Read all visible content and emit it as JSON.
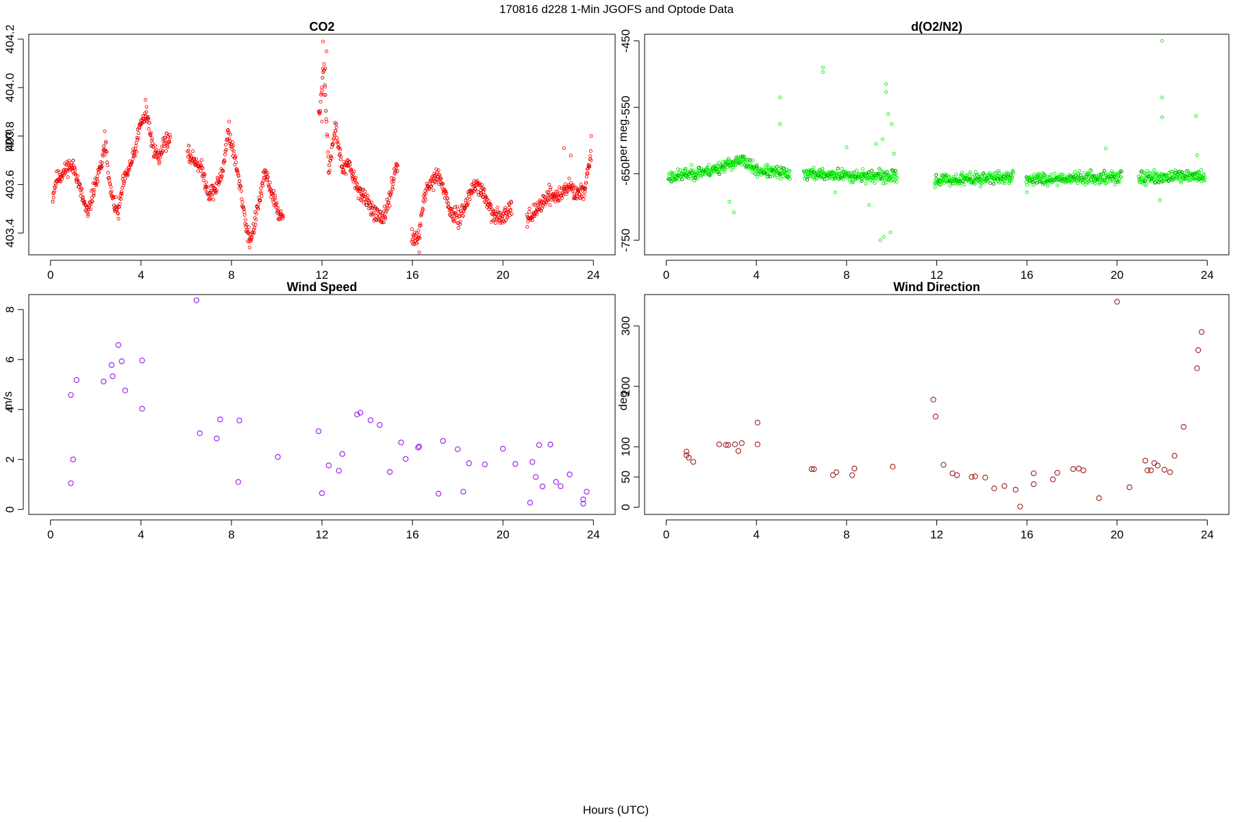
{
  "page": {
    "title": "170816   d228   1-Min  JGOFS and Optode Data",
    "xlabel": "Hours (UTC)"
  },
  "chart_data": [
    {
      "id": "co2",
      "type": "scatter",
      "title": "CO2",
      "xlabel": "",
      "ylabel": "ppm",
      "xlim": [
        -0.96,
        24.96
      ],
      "ylim": [
        403.31,
        404.22
      ],
      "xticks": [
        0,
        4,
        8,
        12,
        16,
        20,
        24
      ],
      "yticks": [
        403.4,
        403.6,
        403.8,
        404.0,
        404.2
      ],
      "ytick_labels": [
        "403.4",
        "403.6",
        "403.8",
        "404.0",
        "404.2"
      ],
      "color": "#ff0000",
      "accent_color": "#8b0000",
      "series_kind": "dense",
      "gaps": [
        [
          5.3,
          6.05
        ],
        [
          10.3,
          11.85
        ],
        [
          15.35,
          15.95
        ],
        [
          20.4,
          21.05
        ]
      ],
      "anchors": [
        [
          0.1,
          403.55
        ],
        [
          0.25,
          403.62
        ],
        [
          0.6,
          403.65
        ],
        [
          0.8,
          403.68
        ],
        [
          1.1,
          403.66
        ],
        [
          1.3,
          403.58
        ],
        [
          1.5,
          403.52
        ],
        [
          1.65,
          403.47
        ],
        [
          1.9,
          403.58
        ],
        [
          2.1,
          403.63
        ],
        [
          2.3,
          403.7
        ],
        [
          2.45,
          403.78
        ],
        [
          2.6,
          403.6
        ],
        [
          2.8,
          403.52
        ],
        [
          3.0,
          403.48
        ],
        [
          3.2,
          403.6
        ],
        [
          3.45,
          403.66
        ],
        [
          3.7,
          403.72
        ],
        [
          4.0,
          403.86
        ],
        [
          4.3,
          403.88
        ],
        [
          4.5,
          403.76
        ],
        [
          4.8,
          403.7
        ],
        [
          5.0,
          403.78
        ],
        [
          5.25,
          403.78
        ],
        [
          6.1,
          403.72
        ],
        [
          6.4,
          403.7
        ],
        [
          6.7,
          403.66
        ],
        [
          7.0,
          403.56
        ],
        [
          7.3,
          403.58
        ],
        [
          7.6,
          403.65
        ],
        [
          7.85,
          403.82
        ],
        [
          8.1,
          403.73
        ],
        [
          8.4,
          403.58
        ],
        [
          8.7,
          403.4
        ],
        [
          8.9,
          403.38
        ],
        [
          9.2,
          403.52
        ],
        [
          9.5,
          403.65
        ],
        [
          9.8,
          403.56
        ],
        [
          10.1,
          403.48
        ],
        [
          10.3,
          403.45
        ],
        [
          11.9,
          403.9
        ],
        [
          12.1,
          404.1
        ],
        [
          12.3,
          403.65
        ],
        [
          12.6,
          403.84
        ],
        [
          12.9,
          403.66
        ],
        [
          13.2,
          403.68
        ],
        [
          13.5,
          403.6
        ],
        [
          13.8,
          403.55
        ],
        [
          14.1,
          403.52
        ],
        [
          14.4,
          403.47
        ],
        [
          14.7,
          403.45
        ],
        [
          15.0,
          403.55
        ],
        [
          15.3,
          403.69
        ],
        [
          16.0,
          403.37
        ],
        [
          16.3,
          403.38
        ],
        [
          16.5,
          403.55
        ],
        [
          16.8,
          403.6
        ],
        [
          17.1,
          403.64
        ],
        [
          17.4,
          403.58
        ],
        [
          17.7,
          403.48
        ],
        [
          18.0,
          403.46
        ],
        [
          18.3,
          403.5
        ],
        [
          18.6,
          403.58
        ],
        [
          18.9,
          403.6
        ],
        [
          19.2,
          403.55
        ],
        [
          19.5,
          403.48
        ],
        [
          19.8,
          403.46
        ],
        [
          20.1,
          403.48
        ],
        [
          20.4,
          403.52
        ],
        [
          21.1,
          403.46
        ],
        [
          21.4,
          403.48
        ],
        [
          21.7,
          403.52
        ],
        [
          22.0,
          403.56
        ],
        [
          22.3,
          403.55
        ],
        [
          22.6,
          403.56
        ],
        [
          22.9,
          403.6
        ],
        [
          23.2,
          403.56
        ],
        [
          23.6,
          403.58
        ],
        [
          23.9,
          403.72
        ]
      ],
      "extra_points": [
        [
          12.05,
          404.19
        ],
        [
          12.2,
          404.15
        ],
        [
          12.15,
          404.08
        ],
        [
          12.1,
          403.97
        ],
        [
          12.0,
          403.86
        ],
        [
          23.9,
          403.8
        ],
        [
          23.0,
          403.72
        ],
        [
          4.2,
          403.95
        ],
        [
          4.25,
          403.92
        ],
        [
          2.4,
          403.82
        ],
        [
          7.9,
          403.86
        ],
        [
          16.3,
          403.32
        ],
        [
          0.4,
          403.65
        ],
        [
          22.7,
          403.75
        ],
        [
          8.8,
          403.34
        ]
      ],
      "noise": 0.025,
      "step": 0.0167,
      "seed": 11
    },
    {
      "id": "o2n2",
      "type": "scatter",
      "title": "d(O2/N2)",
      "xlabel": "",
      "ylabel": "per meg",
      "xlim": [
        -0.96,
        24.96
      ],
      "ylim": [
        -772,
        -440
      ],
      "xticks": [
        0,
        4,
        8,
        12,
        16,
        20,
        24
      ],
      "yticks": [
        -750,
        -650,
        -550,
        -450
      ],
      "ytick_labels": [
        "-750",
        "-650",
        "-550",
        "-450"
      ],
      "color": "#00ee00",
      "accent_color": "#006400",
      "series_kind": "dense",
      "gaps": [
        [
          5.5,
          6.1
        ],
        [
          10.25,
          11.9
        ],
        [
          15.4,
          15.95
        ],
        [
          20.2,
          20.95
        ]
      ],
      "anchors": [
        [
          0.1,
          -655
        ],
        [
          1.0,
          -650
        ],
        [
          2.0,
          -645
        ],
        [
          2.8,
          -635
        ],
        [
          3.4,
          -630
        ],
        [
          4.0,
          -645
        ],
        [
          5.4,
          -650
        ],
        [
          6.1,
          -650
        ],
        [
          10.2,
          -655
        ],
        [
          11.9,
          -660
        ],
        [
          15.4,
          -655
        ],
        [
          15.95,
          -658
        ],
        [
          20.2,
          -655
        ],
        [
          20.95,
          -656
        ],
        [
          23.9,
          -654
        ]
      ],
      "extra_points": [
        [
          5.05,
          -535
        ],
        [
          5.05,
          -575
        ],
        [
          6.95,
          -490
        ],
        [
          6.95,
          -497
        ],
        [
          9.75,
          -515
        ],
        [
          9.75,
          -527
        ],
        [
          9.85,
          -560
        ],
        [
          10.0,
          -575
        ],
        [
          9.5,
          -750
        ],
        [
          9.65,
          -745
        ],
        [
          9.95,
          -738
        ],
        [
          3.0,
          -708
        ],
        [
          2.8,
          -692
        ],
        [
          9.6,
          -598
        ],
        [
          10.1,
          -620
        ],
        [
          22.0,
          -450
        ],
        [
          22.0,
          -535
        ],
        [
          22.0,
          -565
        ],
        [
          23.5,
          -563
        ],
        [
          23.55,
          -622
        ],
        [
          21.9,
          -690
        ],
        [
          19.5,
          -612
        ],
        [
          16.0,
          -678
        ],
        [
          9.3,
          -605
        ],
        [
          9.0,
          -697
        ],
        [
          8.0,
          -610
        ],
        [
          7.5,
          -678
        ]
      ],
      "noise": 7,
      "step": 0.0167,
      "seed": 23
    },
    {
      "id": "wind-speed",
      "type": "scatter",
      "title": "Wind Speed",
      "xlabel": "",
      "ylabel": "m/s",
      "xlim": [
        -0.96,
        24.96
      ],
      "ylim": [
        -0.2,
        8.6
      ],
      "xticks": [
        0,
        4,
        8,
        12,
        16,
        20,
        24
      ],
      "yticks": [
        0,
        2,
        4,
        6,
        8
      ],
      "ytick_labels": [
        "0",
        "2",
        "4",
        "6",
        "8"
      ],
      "color": "#a020f0",
      "series_kind": "sparse",
      "points": [
        [
          0.9,
          1.05
        ],
        [
          0.9,
          4.58
        ],
        [
          1.0,
          2.0
        ],
        [
          1.15,
          5.18
        ],
        [
          2.35,
          5.12
        ],
        [
          2.7,
          5.78
        ],
        [
          2.75,
          5.33
        ],
        [
          3.0,
          6.58
        ],
        [
          3.15,
          5.93
        ],
        [
          3.3,
          4.76
        ],
        [
          4.05,
          4.03
        ],
        [
          4.05,
          5.96
        ],
        [
          6.45,
          8.37
        ],
        [
          6.6,
          3.05
        ],
        [
          7.35,
          2.84
        ],
        [
          7.5,
          3.6
        ],
        [
          8.3,
          1.1
        ],
        [
          8.35,
          3.56
        ],
        [
          10.05,
          2.1
        ],
        [
          11.85,
          3.13
        ],
        [
          12.0,
          0.65
        ],
        [
          12.3,
          1.76
        ],
        [
          12.75,
          1.55
        ],
        [
          12.9,
          2.22
        ],
        [
          13.55,
          3.8
        ],
        [
          13.7,
          3.87
        ],
        [
          14.15,
          3.57
        ],
        [
          14.55,
          3.38
        ],
        [
          15.0,
          1.5
        ],
        [
          15.5,
          2.68
        ],
        [
          15.7,
          2.02
        ],
        [
          16.25,
          2.48
        ],
        [
          16.3,
          2.52
        ],
        [
          17.15,
          0.63
        ],
        [
          17.35,
          2.74
        ],
        [
          18.0,
          2.41
        ],
        [
          18.25,
          0.71
        ],
        [
          18.5,
          1.85
        ],
        [
          19.2,
          1.8
        ],
        [
          20.0,
          2.43
        ],
        [
          20.55,
          1.82
        ],
        [
          21.2,
          0.27
        ],
        [
          21.3,
          1.9
        ],
        [
          21.45,
          1.3
        ],
        [
          21.6,
          2.58
        ],
        [
          21.75,
          0.92
        ],
        [
          22.1,
          2.6
        ],
        [
          22.35,
          1.1
        ],
        [
          22.55,
          0.93
        ],
        [
          22.95,
          1.4
        ],
        [
          23.55,
          0.23
        ],
        [
          23.55,
          0.4
        ],
        [
          23.7,
          0.71
        ]
      ]
    },
    {
      "id": "wind-direction",
      "type": "scatter",
      "title": "Wind Direction",
      "xlabel": "",
      "ylabel": "deg",
      "xlim": [
        -0.96,
        24.96
      ],
      "ylim": [
        -12,
        352
      ],
      "xticks": [
        0,
        4,
        8,
        12,
        16,
        20,
        24
      ],
      "yticks": [
        0,
        50,
        100,
        200,
        300
      ],
      "ytick_labels": [
        "0",
        "50",
        "100",
        "200",
        "300"
      ],
      "color": "#a52a2a",
      "series_kind": "sparse",
      "points": [
        [
          0.9,
          92
        ],
        [
          0.9,
          86
        ],
        [
          1.0,
          82
        ],
        [
          1.2,
          75
        ],
        [
          2.35,
          104
        ],
        [
          2.65,
          103
        ],
        [
          2.75,
          103
        ],
        [
          3.05,
          104
        ],
        [
          3.2,
          93
        ],
        [
          3.35,
          106
        ],
        [
          4.05,
          104
        ],
        [
          4.05,
          140
        ],
        [
          6.45,
          63
        ],
        [
          6.55,
          63
        ],
        [
          7.4,
          53
        ],
        [
          7.55,
          58
        ],
        [
          8.25,
          53
        ],
        [
          8.35,
          64
        ],
        [
          10.05,
          67
        ],
        [
          11.85,
          178
        ],
        [
          11.95,
          150
        ],
        [
          12.3,
          70
        ],
        [
          12.7,
          56
        ],
        [
          12.9,
          53
        ],
        [
          13.55,
          50
        ],
        [
          13.7,
          51
        ],
        [
          14.15,
          49
        ],
        [
          14.55,
          31
        ],
        [
          15.0,
          35
        ],
        [
          15.5,
          29
        ],
        [
          15.7,
          1
        ],
        [
          16.3,
          38
        ],
        [
          16.3,
          56
        ],
        [
          17.15,
          46
        ],
        [
          17.35,
          57
        ],
        [
          18.05,
          63
        ],
        [
          18.3,
          64
        ],
        [
          18.5,
          61
        ],
        [
          19.2,
          15
        ],
        [
          20.0,
          340
        ],
        [
          20.55,
          33
        ],
        [
          21.25,
          77
        ],
        [
          21.35,
          61
        ],
        [
          21.5,
          61
        ],
        [
          21.65,
          73
        ],
        [
          21.8,
          69
        ],
        [
          22.1,
          62
        ],
        [
          22.35,
          58
        ],
        [
          22.55,
          85
        ],
        [
          22.95,
          133
        ],
        [
          23.55,
          230
        ],
        [
          23.6,
          260
        ],
        [
          23.75,
          290
        ]
      ]
    }
  ]
}
